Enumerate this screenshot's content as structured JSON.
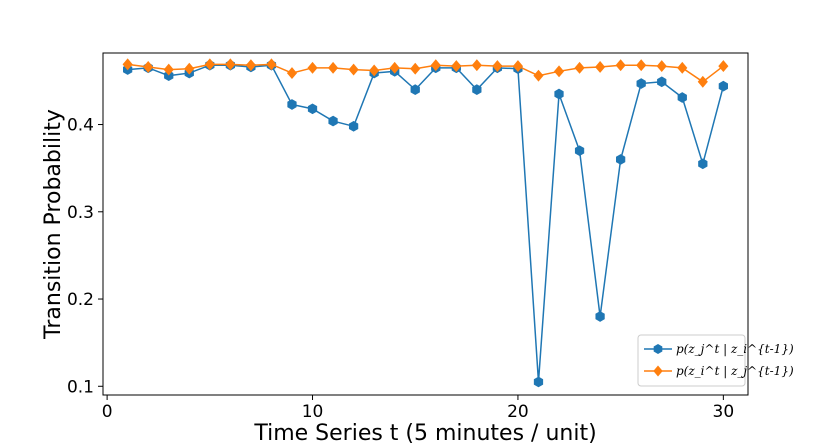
{
  "chart_data": {
    "type": "line",
    "title": "",
    "xlabel": "Time Series t (5 minutes / unit)",
    "ylabel": "Transition Probability",
    "xlim": [
      -0.2,
      31.2
    ],
    "ylim": [
      0.09,
      0.482
    ],
    "xticks": [
      0,
      10,
      20,
      30
    ],
    "yticks": [
      0.1,
      0.2,
      0.3,
      0.4
    ],
    "xtick_labels": [
      "0",
      "10",
      "20",
      "30"
    ],
    "ytick_labels": [
      "0.1",
      "0.2",
      "0.3",
      "0.4"
    ],
    "grid": false,
    "legend_position": "lower-right",
    "x": [
      1,
      2,
      3,
      4,
      5,
      6,
      7,
      8,
      9,
      10,
      11,
      12,
      13,
      14,
      15,
      16,
      17,
      18,
      19,
      20,
      21,
      22,
      23,
      24,
      25,
      26,
      27,
      28,
      29,
      30
    ],
    "series": [
      {
        "name": "p(z_j^t | z_i^{t-1})",
        "color": "#1f77b4",
        "marker": "hexagon",
        "values": [
          0.463,
          0.465,
          0.456,
          0.459,
          0.468,
          0.468,
          0.466,
          0.468,
          0.423,
          0.418,
          0.404,
          0.398,
          0.459,
          0.461,
          0.44,
          0.465,
          0.465,
          0.44,
          0.465,
          0.464,
          0.105,
          0.435,
          0.37,
          0.18,
          0.36,
          0.447,
          0.449,
          0.431,
          0.355,
          0.444
        ]
      },
      {
        "name": "p(z_i^t | z_j^{t-1})",
        "color": "#ff7f0e",
        "marker": "diamond",
        "values": [
          0.469,
          0.466,
          0.463,
          0.464,
          0.469,
          0.469,
          0.468,
          0.469,
          0.459,
          0.465,
          0.465,
          0.463,
          0.462,
          0.465,
          0.464,
          0.468,
          0.467,
          0.468,
          0.467,
          0.467,
          0.456,
          0.461,
          0.465,
          0.466,
          0.468,
          0.468,
          0.467,
          0.465,
          0.449,
          0.467
        ]
      }
    ]
  }
}
